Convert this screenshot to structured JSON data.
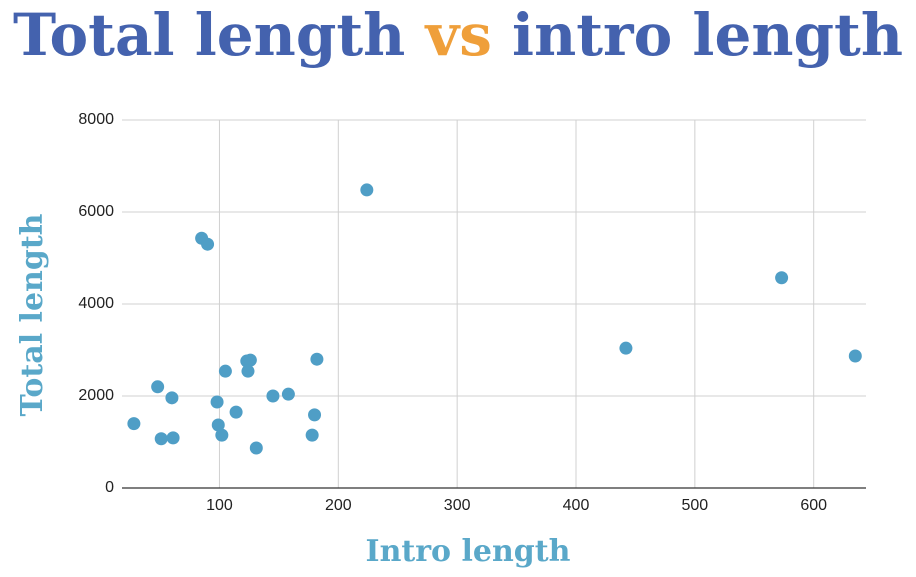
{
  "chart_data": {
    "type": "scatter",
    "title_segments": [
      {
        "text": "Total length",
        "color": "#4462ae"
      },
      {
        "text": "vs",
        "color": "#ef9f3a"
      },
      {
        "text": "intro length",
        "color": "#4462ae"
      }
    ],
    "x_label": "Intro length",
    "y_label": "Total length",
    "color": "#4f9ec6",
    "grid": true,
    "xlim": [
      18,
      644
    ],
    "ylim": [
      0,
      8000
    ],
    "xticks": [
      100,
      200,
      300,
      400,
      500,
      600
    ],
    "yticks": [
      0,
      2000,
      4000,
      6000,
      8000
    ],
    "x": [
      28,
      48,
      51,
      60,
      61,
      85,
      90,
      98,
      99,
      102,
      105,
      114,
      123,
      126,
      124,
      131,
      145,
      158,
      178,
      180,
      182,
      224,
      442,
      573,
      635
    ],
    "values": [
      1400,
      2200,
      1070,
      1960,
      1090,
      5430,
      5300,
      1870,
      1370,
      1150,
      2540,
      1650,
      2760,
      2780,
      2540,
      870,
      2000,
      2040,
      1150,
      1590,
      2800,
      6480,
      3040,
      4570,
      2870
    ]
  }
}
